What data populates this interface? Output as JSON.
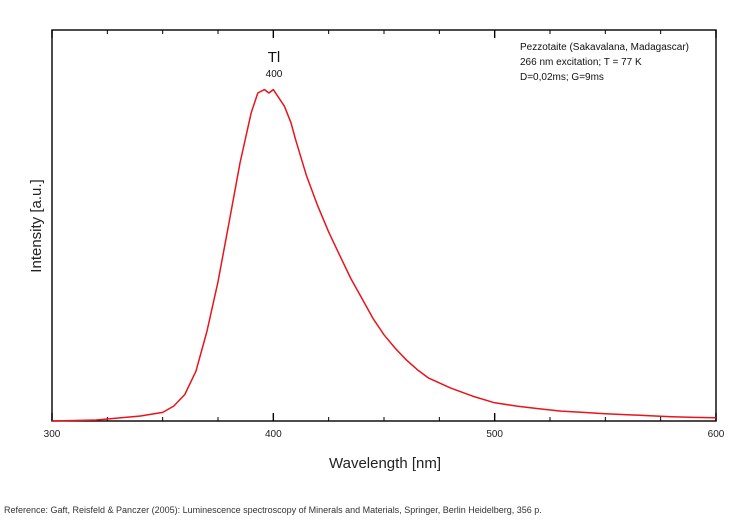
{
  "chart_data": {
    "type": "line",
    "xlabel": "Wavelength [nm]",
    "ylabel": "Intensity [a.u.]",
    "xlim": [
      300,
      600
    ],
    "ylim": [
      0,
      1.18
    ],
    "x_ticks": [
      300,
      400,
      500,
      600
    ],
    "y_tick_labels_shown": false,
    "grid": false,
    "series": [
      {
        "color": "#e8141c",
        "x": [
          300,
          320,
          340,
          350,
          355,
          360,
          365,
          370,
          375,
          380,
          385,
          390,
          393,
          396,
          398,
          400,
          402,
          405,
          408,
          410,
          415,
          420,
          425,
          430,
          435,
          440,
          445,
          450,
          455,
          460,
          465,
          470,
          480,
          490,
          500,
          510,
          520,
          530,
          540,
          550,
          560,
          570,
          580,
          590,
          600
        ],
        "values": [
          0.0,
          0.003,
          0.015,
          0.026,
          0.045,
          0.08,
          0.15,
          0.27,
          0.42,
          0.6,
          0.78,
          0.93,
          0.99,
          1.0,
          0.99,
          1.0,
          0.98,
          0.95,
          0.9,
          0.85,
          0.74,
          0.65,
          0.57,
          0.5,
          0.43,
          0.37,
          0.31,
          0.26,
          0.22,
          0.185,
          0.155,
          0.13,
          0.1,
          0.075,
          0.055,
          0.045,
          0.037,
          0.03,
          0.026,
          0.022,
          0.019,
          0.016,
          0.013,
          0.011,
          0.01
        ]
      }
    ],
    "annotations": [
      {
        "text": "Tl",
        "x": 400
      },
      {
        "text": "400",
        "x": 400
      }
    ],
    "legend_text": [
      "Pezzotaite (Sakavalana, Madagascar)",
      "266 nm excitation; T = 77 K",
      "D=0,02ms; G=9ms"
    ],
    "legend_position": "top-right"
  },
  "reference": "Reference: Gaft, Reisfeld & Panczer (2005): Luminescence spectroscopy of Minerals and Materials, Springer, Berlin Heidelberg, 356 p."
}
